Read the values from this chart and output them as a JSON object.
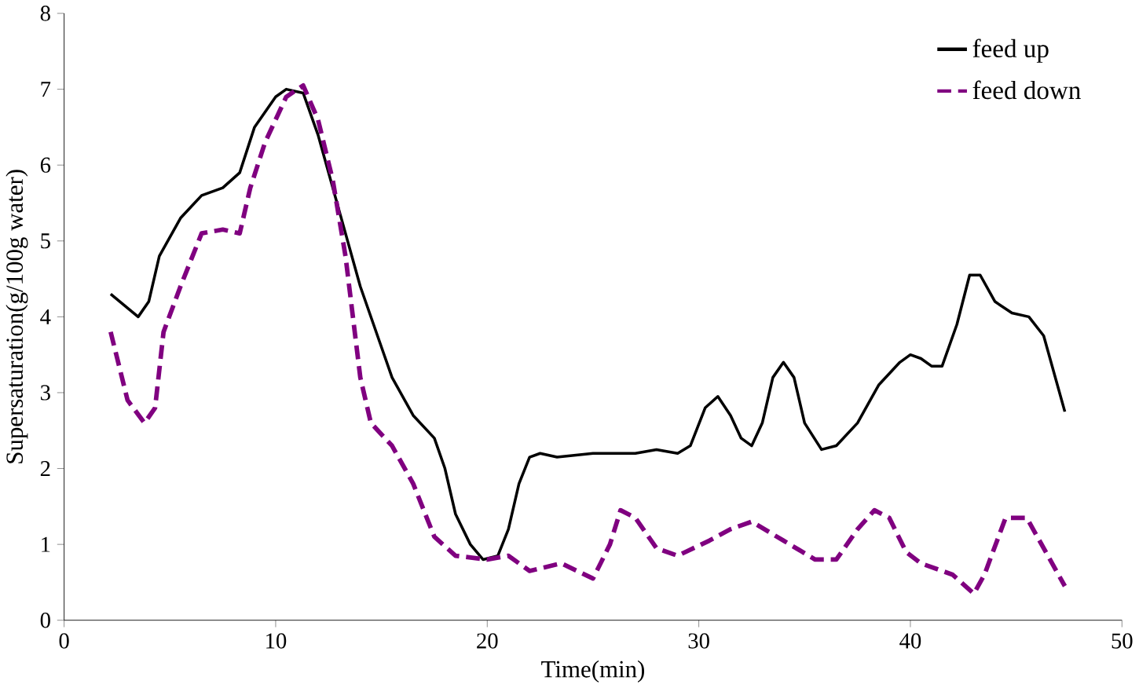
{
  "chart_data": {
    "type": "line",
    "xlabel": "Time(min)",
    "ylabel": "Supersaturation(g/100g water)",
    "xlim": [
      0,
      50
    ],
    "ylim": [
      0,
      8
    ],
    "xticks": [
      0,
      10,
      20,
      30,
      40,
      50
    ],
    "yticks": [
      0,
      1,
      2,
      3,
      4,
      5,
      6,
      7,
      8
    ],
    "grid": false,
    "legend": "top right",
    "marker": "none",
    "series": [
      {
        "name": "feed up",
        "color": "#000000",
        "line_style": "solid",
        "x": [
          2.2,
          3.5,
          4,
          4.5,
          5.5,
          6.5,
          7.5,
          8.3,
          9,
          10,
          10.5,
          11.3,
          12,
          13,
          14,
          15,
          15.5,
          16.5,
          17.5,
          18,
          18.5,
          19.2,
          19.8,
          20.5,
          21,
          21.5,
          22,
          22.5,
          23.3,
          25,
          27,
          28,
          29,
          29.6,
          30.3,
          30.9,
          31.5,
          32,
          32.5,
          33,
          33.5,
          34,
          34.5,
          35,
          35.8,
          36.5,
          37.5,
          38.5,
          39.5,
          40,
          40.5,
          41,
          41.5,
          42.2,
          42.8,
          43.3,
          44,
          44.8,
          45.6,
          46.3,
          47.3
        ],
        "values": [
          4.3,
          4.0,
          4.2,
          4.8,
          5.3,
          5.6,
          5.7,
          5.9,
          6.5,
          6.9,
          7.0,
          6.95,
          6.4,
          5.4,
          4.4,
          3.6,
          3.2,
          2.7,
          2.4,
          2.0,
          1.4,
          1.0,
          0.8,
          0.85,
          1.2,
          1.8,
          2.15,
          2.2,
          2.15,
          2.2,
          2.2,
          2.25,
          2.2,
          2.3,
          2.8,
          2.95,
          2.7,
          2.4,
          2.3,
          2.6,
          3.2,
          3.4,
          3.2,
          2.6,
          2.25,
          2.3,
          2.6,
          3.1,
          3.4,
          3.5,
          3.45,
          3.35,
          3.35,
          3.9,
          4.55,
          4.55,
          4.2,
          4.05,
          4.0,
          3.75,
          2.75
        ]
      },
      {
        "name": "feed down",
        "color": "#800080",
        "line_style": "dashed",
        "x": [
          2.2,
          3,
          3.8,
          4.3,
          4.7,
          5.5,
          6.5,
          7.5,
          8.3,
          8.8,
          9.5,
          10.5,
          11.3,
          12,
          12.7,
          13.3,
          14,
          14.5,
          15.5,
          16.5,
          17.5,
          18.5,
          20,
          21,
          22,
          23.5,
          25,
          25.8,
          26.3,
          27,
          28,
          29,
          30.5,
          31.5,
          32.5,
          34,
          35.5,
          36.5,
          37.5,
          38.3,
          39,
          39.8,
          40.5,
          42,
          43,
          43.5,
          44.5,
          45.5,
          46,
          47.3
        ],
        "values": [
          3.8,
          2.9,
          2.6,
          2.8,
          3.8,
          4.4,
          5.1,
          5.15,
          5.1,
          5.7,
          6.3,
          6.9,
          7.05,
          6.6,
          5.8,
          4.8,
          3.2,
          2.6,
          2.3,
          1.8,
          1.1,
          0.85,
          0.8,
          0.85,
          0.65,
          0.75,
          0.55,
          1.0,
          1.45,
          1.35,
          0.95,
          0.85,
          1.05,
          1.2,
          1.3,
          1.05,
          0.8,
          0.8,
          1.2,
          1.45,
          1.35,
          0.9,
          0.75,
          0.6,
          0.35,
          0.6,
          1.35,
          1.35,
          1.1,
          0.45
        ]
      }
    ]
  }
}
